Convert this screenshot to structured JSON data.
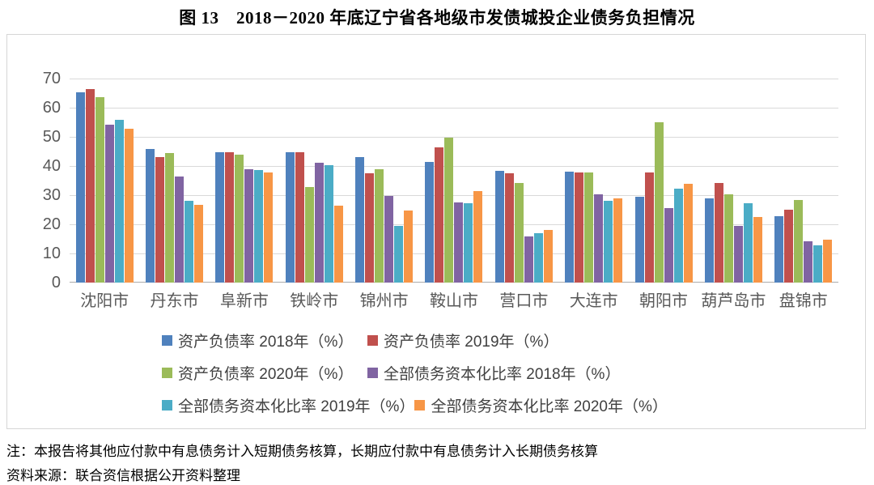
{
  "title": "图 13　2018－2020 年底辽宁省各地级市发债城投企业债务负担情况",
  "notes": {
    "line1": "注：本报告将其他应付款中有息债务计入短期债务核算，长期应付款中有息债务计入长期债务核算",
    "line2": "资料来源：联合资信根据公开资料整理"
  },
  "colors": {
    "gridline": "#d9d9d9",
    "axis_line": "#ababab",
    "axis_label": "#595959",
    "legend_text": "#404040"
  },
  "chart_data": {
    "type": "bar",
    "title": "图 13　2018－2020 年底辽宁省各地级市发债城投企业债务负担情况",
    "categories": [
      "沈阳市",
      "丹东市",
      "阜新市",
      "铁岭市",
      "锦州市",
      "鞍山市",
      "营口市",
      "大连市",
      "朝阳市",
      "葫芦岛市",
      "盘锦市"
    ],
    "series": [
      {
        "name": "资产负债率 2018年（%）",
        "color": "#4F81BD",
        "values": [
          65.2,
          45.9,
          44.8,
          44.6,
          43.0,
          41.4,
          38.4,
          38.0,
          29.4,
          28.9,
          22.7
        ]
      },
      {
        "name": "资产负债率 2019年（%）",
        "color": "#C0504D",
        "values": [
          66.3,
          43.0,
          44.6,
          44.7,
          37.4,
          46.3,
          37.4,
          37.7,
          37.9,
          34.1,
          25.1
        ]
      },
      {
        "name": "资产负债率 2020年（%）",
        "color": "#9BBB59",
        "values": [
          63.6,
          44.4,
          43.9,
          32.9,
          38.8,
          49.7,
          34.1,
          37.7,
          55.1,
          30.4,
          28.2
        ]
      },
      {
        "name": "全部债务资本化比率 2018年（%）",
        "color": "#8064A2",
        "values": [
          54.3,
          36.3,
          38.8,
          41.0,
          29.8,
          27.4,
          15.9,
          30.2,
          25.5,
          19.4,
          14.3
        ]
      },
      {
        "name": "全部债务资本化比率 2019年（%）",
        "color": "#4BACC6",
        "values": [
          55.9,
          28.0,
          38.5,
          40.3,
          19.5,
          27.1,
          16.9,
          28.1,
          32.3,
          27.2,
          12.8
        ]
      },
      {
        "name": "全部债务资本化比率 2020年（%）",
        "color": "#F79646",
        "values": [
          52.7,
          26.6,
          37.7,
          26.3,
          24.8,
          31.3,
          18.0,
          29.0,
          33.9,
          22.5,
          14.8
        ]
      }
    ],
    "ylim": [
      0,
      70
    ],
    "yticks": [
      0,
      10,
      20,
      30,
      40,
      50,
      60,
      70
    ],
    "xlabel": "",
    "ylabel": "",
    "grid": true,
    "legend_position": "bottom",
    "legend_rows": [
      [
        0,
        1
      ],
      [
        2,
        3
      ],
      [
        4,
        5
      ]
    ]
  }
}
